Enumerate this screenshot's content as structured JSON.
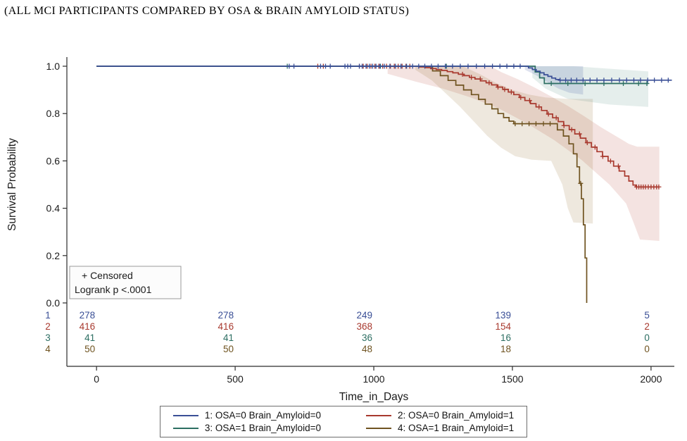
{
  "title": "(ALL MCI PARTICIPANTS COMPARED BY OSA & BRAIN AMYLOID STATUS)",
  "chart_data": {
    "type": "line",
    "subtype": "kaplan_meier_step",
    "title": "(ALL MCI PARTICIPANTS COMPARED BY OSA & BRAIN AMYLOID STATUS)",
    "xlabel": "Time_in_Days",
    "ylabel": "Survival Probability",
    "xlim": [
      -107,
      2084
    ],
    "ylim": [
      0,
      1
    ],
    "xticks": [
      0,
      500,
      1000,
      1500,
      2000
    ],
    "yticks": [
      0,
      0.2,
      0.4,
      0.6,
      0.8,
      1
    ],
    "grid": false,
    "legend_position": "bottom",
    "annotation_box": {
      "lines": [
        "+ Censored",
        "Logrank p <.0001"
      ]
    },
    "series": [
      {
        "id": 1,
        "name": "1: OSA=0 Brain_Amyloid=0",
        "color": "#3a4f96",
        "steps": [
          [
            0,
            1.0
          ],
          [
            1545,
            1.0
          ],
          [
            1558,
            0.993
          ],
          [
            1572,
            0.986
          ],
          [
            1586,
            0.979
          ],
          [
            1600,
            0.972
          ],
          [
            1614,
            0.964
          ],
          [
            1628,
            0.957
          ],
          [
            1642,
            0.95
          ],
          [
            1656,
            0.944
          ],
          [
            1668,
            0.941
          ],
          [
            2075,
            0.941
          ]
        ],
        "censor_times": [
          695,
          712,
          808,
          826,
          843,
          896,
          906,
          916,
          948,
          958,
          972,
          984,
          996,
          1008,
          1022,
          1038,
          1058,
          1078,
          1098,
          1118,
          1140,
          1162,
          1184,
          1208,
          1232,
          1258,
          1284,
          1312,
          1340,
          1370,
          1400,
          1428,
          1455,
          1480,
          1505,
          1528,
          1672,
          1692,
          1712,
          1732,
          1755,
          1780,
          1805,
          1830,
          1858,
          1886,
          1912,
          1938,
          1962,
          1988,
          2012,
          2038,
          2062
        ],
        "band": {
          "color": "rgba(70,95,165,0.18)",
          "upper": [
            [
              1545,
              1.0
            ],
            [
              1755,
              1.0
            ]
          ],
          "lower": [
            [
              1545,
              0.985
            ],
            [
              1585,
              0.962
            ],
            [
              1625,
              0.934
            ],
            [
              1665,
              0.906
            ],
            [
              1705,
              0.888
            ],
            [
              1755,
              0.88
            ]
          ]
        }
      },
      {
        "id": 2,
        "name": "2: OSA=0 Brain_Amyloid=1",
        "color": "#a8392e",
        "steps": [
          [
            0,
            1.0
          ],
          [
            1145,
            1.0
          ],
          [
            1165,
            0.997
          ],
          [
            1185,
            0.994
          ],
          [
            1205,
            0.99
          ],
          [
            1225,
            0.986
          ],
          [
            1245,
            0.982
          ],
          [
            1265,
            0.977
          ],
          [
            1285,
            0.972
          ],
          [
            1305,
            0.966
          ],
          [
            1325,
            0.96
          ],
          [
            1345,
            0.953
          ],
          [
            1365,
            0.946
          ],
          [
            1385,
            0.938
          ],
          [
            1405,
            0.93
          ],
          [
            1425,
            0.921
          ],
          [
            1445,
            0.912
          ],
          [
            1465,
            0.902
          ],
          [
            1485,
            0.891
          ],
          [
            1505,
            0.88
          ],
          [
            1525,
            0.868
          ],
          [
            1545,
            0.855
          ],
          [
            1565,
            0.842
          ],
          [
            1585,
            0.828
          ],
          [
            1605,
            0.813
          ],
          [
            1625,
            0.798
          ],
          [
            1645,
            0.782
          ],
          [
            1665,
            0.766
          ],
          [
            1685,
            0.749
          ],
          [
            1705,
            0.732
          ],
          [
            1725,
            0.714
          ],
          [
            1745,
            0.696
          ],
          [
            1765,
            0.677
          ],
          [
            1785,
            0.658
          ],
          [
            1805,
            0.639
          ],
          [
            1825,
            0.619
          ],
          [
            1845,
            0.599
          ],
          [
            1865,
            0.578
          ],
          [
            1885,
            0.557
          ],
          [
            1905,
            0.536
          ],
          [
            1920,
            0.515
          ],
          [
            1935,
            0.498
          ],
          [
            1945,
            0.49
          ],
          [
            2030,
            0.49
          ]
        ],
        "censor_times": [
          798,
          818,
          948,
          962,
          976,
          990,
          1004,
          1018,
          1032,
          1046,
          1060,
          1074,
          1088,
          1102,
          1116,
          1130,
          1320,
          1352,
          1384,
          1416,
          1448,
          1472,
          1496,
          1530,
          1562,
          1596,
          1630,
          1658,
          1686,
          1714,
          1742,
          1770,
          1798,
          1826,
          1854,
          1882,
          1948,
          1956,
          1964,
          1972,
          1980,
          1990,
          2000,
          2010,
          2020,
          2028
        ],
        "band": {
          "color": "rgba(176,60,46,0.14)",
          "upper": [
            [
              1050,
              1.0
            ],
            [
              1420,
              1.0
            ],
            [
              1460,
              0.975
            ],
            [
              1520,
              0.945
            ],
            [
              1580,
              0.91
            ],
            [
              1640,
              0.872
            ],
            [
              1700,
              0.832
            ],
            [
              1760,
              0.788
            ],
            [
              1820,
              0.742
            ],
            [
              1880,
              0.7
            ],
            [
              1920,
              0.672
            ],
            [
              1950,
              0.66
            ],
            [
              2030,
              0.66
            ]
          ],
          "lower": [
            [
              1050,
              0.968
            ],
            [
              1150,
              0.935
            ],
            [
              1250,
              0.905
            ],
            [
              1350,
              0.868
            ],
            [
              1450,
              0.822
            ],
            [
              1550,
              0.76
            ],
            [
              1650,
              0.688
            ],
            [
              1750,
              0.604
            ],
            [
              1850,
              0.5
            ],
            [
              1910,
              0.42
            ],
            [
              1940,
              0.33
            ],
            [
              1960,
              0.268
            ],
            [
              2030,
              0.262
            ]
          ]
        }
      },
      {
        "id": 3,
        "name": "3: OSA=1 Brain_Amyloid=0",
        "color": "#2c6e62",
        "steps": [
          [
            0,
            1.0
          ],
          [
            1572,
            1.0
          ],
          [
            1582,
            0.976
          ],
          [
            1598,
            0.951
          ],
          [
            1615,
            0.927
          ],
          [
            1990,
            0.927
          ]
        ],
        "censor_times": [
          688,
          1024,
          1118,
          1262,
          1640,
          1700,
          1762,
          1830,
          1900,
          1955,
          1985
        ],
        "band": {
          "color": "rgba(40,115,100,0.12)",
          "upper": [
            [
              1572,
              1.0
            ],
            [
              1720,
              1.0
            ],
            [
              1990,
              0.978
            ]
          ],
          "lower": [
            [
              1572,
              0.952
            ],
            [
              1620,
              0.905
            ],
            [
              1700,
              0.862
            ],
            [
              1850,
              0.838
            ],
            [
              1990,
              0.828
            ]
          ]
        }
      },
      {
        "id": 4,
        "name": "4: OSA=1 Brain_Amyloid=1",
        "color": "#6f5320",
        "steps": [
          [
            0,
            1.0
          ],
          [
            1185,
            1.0
          ],
          [
            1212,
            0.98
          ],
          [
            1240,
            0.96
          ],
          [
            1268,
            0.94
          ],
          [
            1296,
            0.92
          ],
          [
            1324,
            0.9
          ],
          [
            1352,
            0.88
          ],
          [
            1378,
            0.86
          ],
          [
            1402,
            0.84
          ],
          [
            1426,
            0.82
          ],
          [
            1448,
            0.8
          ],
          [
            1468,
            0.783
          ],
          [
            1488,
            0.768
          ],
          [
            1505,
            0.757
          ],
          [
            1640,
            0.757
          ],
          [
            1662,
            0.731
          ],
          [
            1684,
            0.705
          ],
          [
            1704,
            0.672
          ],
          [
            1720,
            0.63
          ],
          [
            1733,
            0.575
          ],
          [
            1742,
            0.505
          ],
          [
            1749,
            0.44
          ],
          [
            1756,
            0.33
          ],
          [
            1762,
            0.19
          ],
          [
            1768,
            0.0
          ]
        ],
        "censor_times": [
          1510,
          1535,
          1560,
          1585,
          1612,
          1636,
          1746
        ],
        "band": {
          "color": "rgba(150,112,52,0.16)",
          "upper": [
            [
              1150,
              1.0
            ],
            [
              1320,
              1.0
            ],
            [
              1380,
              0.968
            ],
            [
              1440,
              0.93
            ],
            [
              1500,
              0.9
            ],
            [
              1560,
              0.88
            ],
            [
              1620,
              0.868
            ],
            [
              1700,
              0.862
            ],
            [
              1790,
              0.862
            ]
          ],
          "lower": [
            [
              1150,
              0.985
            ],
            [
              1210,
              0.94
            ],
            [
              1260,
              0.885
            ],
            [
              1310,
              0.83
            ],
            [
              1360,
              0.768
            ],
            [
              1410,
              0.705
            ],
            [
              1460,
              0.655
            ],
            [
              1510,
              0.62
            ],
            [
              1570,
              0.605
            ],
            [
              1640,
              0.6
            ],
            [
              1680,
              0.5
            ],
            [
              1700,
              0.4
            ],
            [
              1720,
              0.34
            ],
            [
              1790,
              0.335
            ]
          ]
        }
      }
    ],
    "at_risk_table": {
      "times": [
        0,
        500,
        1000,
        1500,
        2000
      ],
      "rows": [
        {
          "label": "1",
          "color": "#3a4f96",
          "counts": [
            278,
            278,
            249,
            139,
            5
          ]
        },
        {
          "label": "2",
          "color": "#a8392e",
          "counts": [
            416,
            416,
            368,
            154,
            2
          ]
        },
        {
          "label": "3",
          "color": "#2c6e62",
          "counts": [
            41,
            41,
            36,
            16,
            0
          ]
        },
        {
          "label": "4",
          "color": "#6f5320",
          "counts": [
            50,
            50,
            48,
            18,
            0
          ]
        }
      ]
    }
  }
}
